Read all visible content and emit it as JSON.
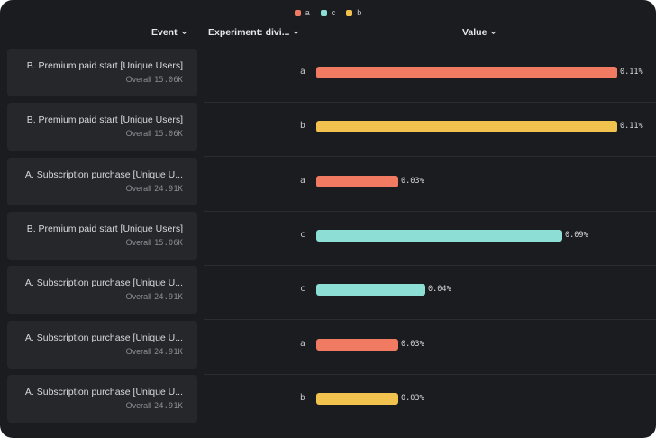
{
  "legend": [
    {
      "label": "a",
      "color": "#f07b62"
    },
    {
      "label": "c",
      "color": "#8ddfd6"
    },
    {
      "label": "b",
      "color": "#f2c24e"
    }
  ],
  "header": {
    "event": "Event",
    "experiment": "Experiment: divi...",
    "value": "Value"
  },
  "chart_data": {
    "type": "bar",
    "orientation": "horizontal",
    "xlabel": "Value",
    "xlim": [
      0,
      0.11
    ],
    "unit": "%",
    "rows": [
      {
        "event": "B. Premium paid start [Unique Users]",
        "overall_label": "Overall",
        "overall": "15.06K",
        "group": "a",
        "value": 0.11,
        "value_label": "0.11%"
      },
      {
        "event": "B. Premium paid start [Unique Users]",
        "overall_label": "Overall",
        "overall": "15.06K",
        "group": "b",
        "value": 0.11,
        "value_label": "0.11%"
      },
      {
        "event": "A. Subscription purchase [Unique U...",
        "overall_label": "Overall",
        "overall": "24.91K",
        "group": "a",
        "value": 0.03,
        "value_label": "0.03%"
      },
      {
        "event": "B. Premium paid start [Unique Users]",
        "overall_label": "Overall",
        "overall": "15.06K",
        "group": "c",
        "value": 0.09,
        "value_label": "0.09%"
      },
      {
        "event": "A. Subscription purchase [Unique U...",
        "overall_label": "Overall",
        "overall": "24.91K",
        "group": "c",
        "value": 0.04,
        "value_label": "0.04%"
      },
      {
        "event": "A. Subscription purchase [Unique U...",
        "overall_label": "Overall",
        "overall": "24.91K",
        "group": "a",
        "value": 0.03,
        "value_label": "0.03%"
      },
      {
        "event": "A. Subscription purchase [Unique U...",
        "overall_label": "Overall",
        "overall": "24.91K",
        "group": "b",
        "value": 0.03,
        "value_label": "0.03%"
      }
    ]
  }
}
